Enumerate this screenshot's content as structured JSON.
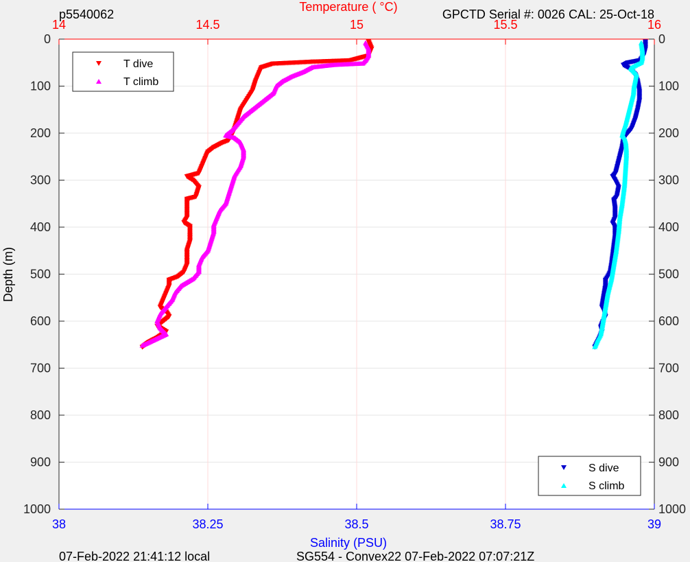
{
  "header": {
    "profile_id": "p5540062",
    "sensor_info": "GPCTD Serial #: 0026 CAL: 25-Oct-18"
  },
  "footer": {
    "local_time": "07-Feb-2022 21:41:12 local",
    "mission_info": "SG554 - Convex22 07-Feb-2022 07:07:21Z"
  },
  "colors": {
    "temperature_axis": "#ff0000",
    "salinity_axis": "#0000ff",
    "t_dive": "#ff0000",
    "t_climb": "#ff00ff",
    "s_dive": "#0000cc",
    "s_climb": "#00ffff",
    "background": "#f0f0f0",
    "plot_bg": "#ffffff"
  },
  "chart_data": {
    "type": "scatter",
    "title": "",
    "ylabel": "Depth (m)",
    "ylim": [
      0,
      1000
    ],
    "y_reversed": true,
    "yticks": [
      "0",
      "100",
      "200",
      "300",
      "400",
      "500",
      "600",
      "700",
      "800",
      "900",
      "1000"
    ],
    "top_axis": {
      "label": "Temperature (    °C)",
      "lim": [
        14,
        16
      ],
      "ticks": [
        "14",
        "14.5",
        "15",
        "15.5",
        "16"
      ],
      "grid": true
    },
    "bottom_axis": {
      "label": "Salinity (PSU)",
      "lim": [
        38,
        39
      ],
      "ticks": [
        "38",
        "38.25",
        "38.5",
        "38.75",
        "39"
      ],
      "grid": false
    },
    "grid_horizontal": true,
    "legend_temperature": {
      "placement": "top-left",
      "entries": [
        {
          "label": "T dive",
          "marker": "down-triangle",
          "series": "t_dive"
        },
        {
          "label": "T climb",
          "marker": "up-triangle",
          "series": "t_climb"
        }
      ]
    },
    "legend_salinity": {
      "placement": "bottom-right",
      "entries": [
        {
          "label": "S dive",
          "marker": "down-triangle",
          "series": "s_dive"
        },
        {
          "label": "S climb",
          "marker": "up-triangle",
          "series": "s_climb"
        }
      ]
    },
    "series": [
      {
        "name": "T dive",
        "key": "t_dive",
        "axis": "top",
        "points": [
          [
            15.04,
            5
          ],
          [
            15.05,
            20
          ],
          [
            15.04,
            35
          ],
          [
            14.98,
            45
          ],
          [
            14.85,
            48
          ],
          [
            14.72,
            52
          ],
          [
            14.68,
            60
          ],
          [
            14.67,
            75
          ],
          [
            14.66,
            90
          ],
          [
            14.65,
            110
          ],
          [
            14.63,
            130
          ],
          [
            14.61,
            150
          ],
          [
            14.6,
            170
          ],
          [
            14.59,
            190
          ],
          [
            14.58,
            205
          ],
          [
            14.57,
            215
          ],
          [
            14.55,
            220
          ],
          [
            14.52,
            230
          ],
          [
            14.5,
            240
          ],
          [
            14.49,
            255
          ],
          [
            14.48,
            270
          ],
          [
            14.47,
            285
          ],
          [
            14.43,
            292
          ],
          [
            14.45,
            300
          ],
          [
            14.47,
            315
          ],
          [
            14.46,
            335
          ],
          [
            14.43,
            340
          ],
          [
            14.43,
            360
          ],
          [
            14.43,
            380
          ],
          [
            14.42,
            390
          ],
          [
            14.44,
            398
          ],
          [
            14.44,
            415
          ],
          [
            14.44,
            430
          ],
          [
            14.43,
            450
          ],
          [
            14.43,
            465
          ],
          [
            14.43,
            480
          ],
          [
            14.42,
            495
          ],
          [
            14.4,
            505
          ],
          [
            14.37,
            512
          ],
          [
            14.37,
            525
          ],
          [
            14.36,
            540
          ],
          [
            14.35,
            555
          ],
          [
            14.34,
            570
          ],
          [
            14.36,
            580
          ],
          [
            14.37,
            590
          ],
          [
            14.35,
            600
          ],
          [
            14.33,
            610
          ],
          [
            14.36,
            622
          ],
          [
            14.33,
            635
          ],
          [
            14.3,
            645
          ],
          [
            14.28,
            655
          ]
        ]
      },
      {
        "name": "T climb",
        "key": "t_climb",
        "axis": "top",
        "points": [
          [
            14.28,
            652
          ],
          [
            14.32,
            640
          ],
          [
            14.36,
            628
          ],
          [
            14.34,
            615
          ],
          [
            14.33,
            600
          ],
          [
            14.34,
            585
          ],
          [
            14.36,
            570
          ],
          [
            14.38,
            555
          ],
          [
            14.39,
            540
          ],
          [
            14.41,
            525
          ],
          [
            14.45,
            510
          ],
          [
            14.47,
            495
          ],
          [
            14.47,
            480
          ],
          [
            14.48,
            465
          ],
          [
            14.5,
            450
          ],
          [
            14.51,
            430
          ],
          [
            14.52,
            410
          ],
          [
            14.52,
            395
          ],
          [
            14.53,
            380
          ],
          [
            14.54,
            365
          ],
          [
            14.56,
            350
          ],
          [
            14.57,
            330
          ],
          [
            14.58,
            310
          ],
          [
            14.59,
            290
          ],
          [
            14.61,
            270
          ],
          [
            14.62,
            250
          ],
          [
            14.62,
            235
          ],
          [
            14.61,
            220
          ],
          [
            14.59,
            210
          ],
          [
            14.56,
            205
          ],
          [
            14.58,
            195
          ],
          [
            14.6,
            180
          ],
          [
            14.62,
            165
          ],
          [
            14.65,
            150
          ],
          [
            14.69,
            130
          ],
          [
            14.72,
            115
          ],
          [
            14.73,
            100
          ],
          [
            14.75,
            90
          ],
          [
            14.78,
            80
          ],
          [
            14.82,
            70
          ],
          [
            14.85,
            60
          ],
          [
            14.92,
            55
          ],
          [
            15.02,
            52
          ],
          [
            15.03,
            45
          ],
          [
            15.04,
            35
          ],
          [
            15.04,
            20
          ],
          [
            15.03,
            8
          ]
        ]
      },
      {
        "name": "S dive",
        "key": "s_dive",
        "axis": "bottom",
        "points": [
          [
            38.985,
            5
          ],
          [
            38.985,
            20
          ],
          [
            38.982,
            35
          ],
          [
            38.976,
            45
          ],
          [
            38.955,
            50
          ],
          [
            38.948,
            55
          ],
          [
            38.958,
            62
          ],
          [
            38.968,
            75
          ],
          [
            38.972,
            90
          ],
          [
            38.975,
            110
          ],
          [
            38.975,
            130
          ],
          [
            38.972,
            150
          ],
          [
            38.968,
            170
          ],
          [
            38.962,
            190
          ],
          [
            38.952,
            205
          ],
          [
            38.948,
            215
          ],
          [
            38.946,
            230
          ],
          [
            38.942,
            250
          ],
          [
            38.938,
            270
          ],
          [
            38.935,
            285
          ],
          [
            38.93,
            292
          ],
          [
            38.934,
            300
          ],
          [
            38.94,
            315
          ],
          [
            38.937,
            335
          ],
          [
            38.932,
            342
          ],
          [
            38.934,
            360
          ],
          [
            38.934,
            380
          ],
          [
            38.93,
            392
          ],
          [
            38.934,
            400
          ],
          [
            38.934,
            420
          ],
          [
            38.932,
            440
          ],
          [
            38.93,
            460
          ],
          [
            38.928,
            480
          ],
          [
            38.926,
            495
          ],
          [
            38.922,
            505
          ],
          [
            38.918,
            512
          ],
          [
            38.918,
            525
          ],
          [
            38.916,
            540
          ],
          [
            38.914,
            555
          ],
          [
            38.912,
            570
          ],
          [
            38.916,
            580
          ],
          [
            38.918,
            590
          ],
          [
            38.914,
            600
          ],
          [
            38.91,
            612
          ],
          [
            38.912,
            622
          ],
          [
            38.908,
            635
          ],
          [
            38.904,
            645
          ],
          [
            38.9,
            655
          ]
        ]
      },
      {
        "name": "S climb",
        "key": "s_climb",
        "axis": "bottom",
        "points": [
          [
            38.9,
            655
          ],
          [
            38.905,
            640
          ],
          [
            38.91,
            628
          ],
          [
            38.912,
            615
          ],
          [
            38.914,
            600
          ],
          [
            38.916,
            585
          ],
          [
            38.918,
            570
          ],
          [
            38.92,
            555
          ],
          [
            38.922,
            540
          ],
          [
            38.925,
            525
          ],
          [
            38.928,
            510
          ],
          [
            38.93,
            495
          ],
          [
            38.932,
            480
          ],
          [
            38.934,
            465
          ],
          [
            38.936,
            450
          ],
          [
            38.938,
            430
          ],
          [
            38.94,
            410
          ],
          [
            38.941,
            395
          ],
          [
            38.942,
            380
          ],
          [
            38.944,
            365
          ],
          [
            38.946,
            350
          ],
          [
            38.948,
            330
          ],
          [
            38.95,
            310
          ],
          [
            38.951,
            290
          ],
          [
            38.952,
            270
          ],
          [
            38.953,
            250
          ],
          [
            38.953,
            235
          ],
          [
            38.952,
            220
          ],
          [
            38.95,
            210
          ],
          [
            38.946,
            205
          ],
          [
            38.948,
            195
          ],
          [
            38.952,
            180
          ],
          [
            38.955,
            165
          ],
          [
            38.958,
            150
          ],
          [
            38.962,
            130
          ],
          [
            38.965,
            115
          ],
          [
            38.966,
            100
          ],
          [
            38.968,
            88
          ],
          [
            38.97,
            75
          ],
          [
            38.96,
            62
          ],
          [
            38.97,
            55
          ],
          [
            38.978,
            50
          ],
          [
            38.98,
            40
          ],
          [
            38.98,
            25
          ],
          [
            38.978,
            8
          ]
        ]
      }
    ]
  }
}
